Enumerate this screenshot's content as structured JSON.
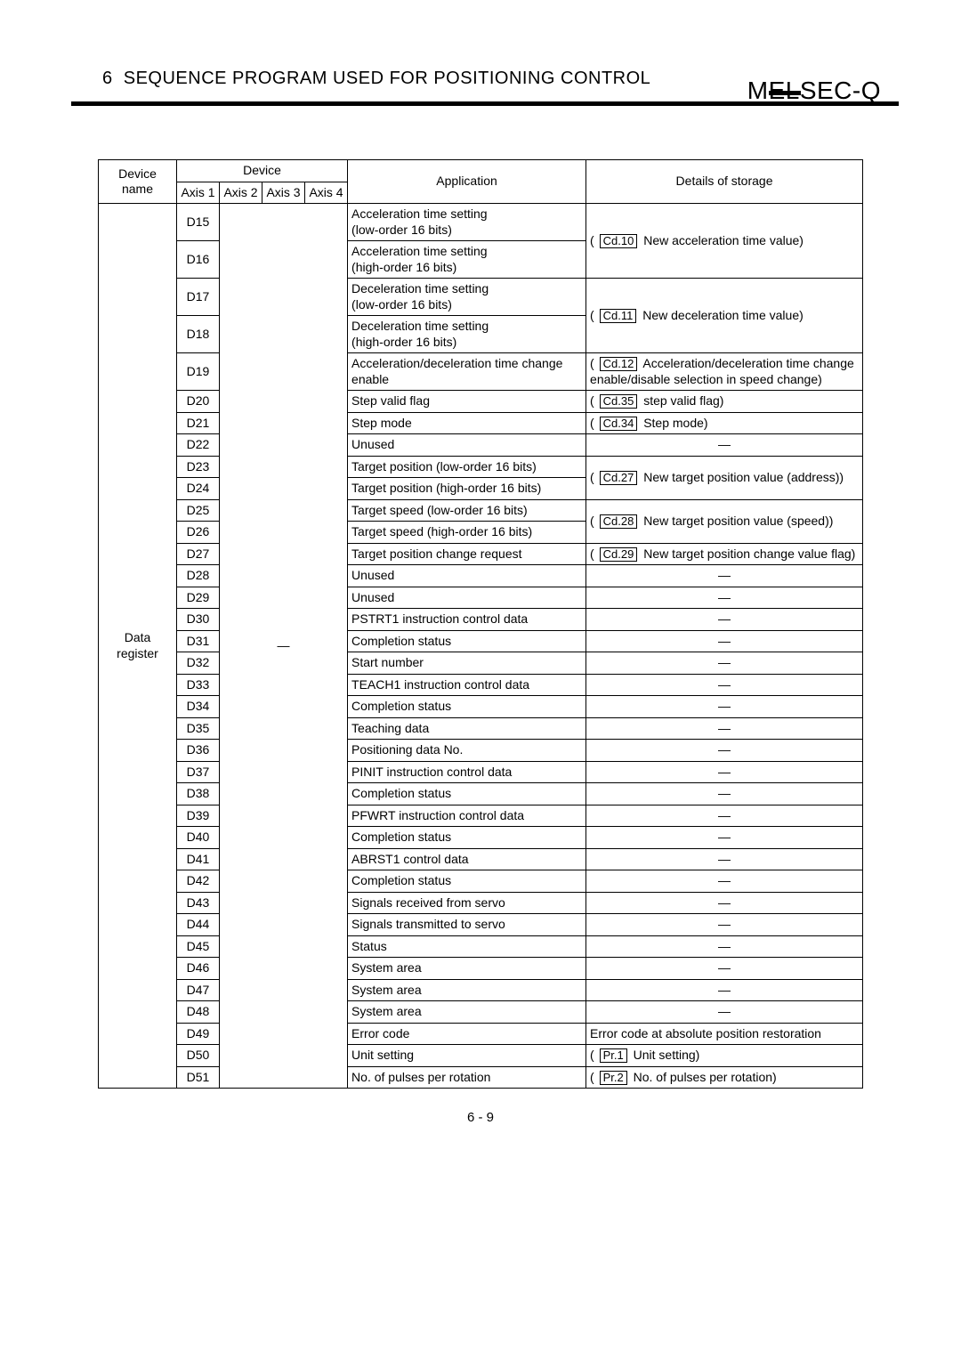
{
  "header": {
    "section_no": "6",
    "section_title": "SEQUENCE PROGRAM USED FOR POSITIONING CONTROL",
    "brand": "MELSEC-Q"
  },
  "page_number": "6 - 9",
  "table": {
    "head": {
      "device_name": "Device name",
      "device": "Device",
      "axis1": "Axis 1",
      "axis2": "Axis 2",
      "axis3": "Axis 3",
      "axis4": "Axis 4",
      "application": "Application",
      "details": "Details of storage"
    },
    "row_header_label": "Data register",
    "axis_merge_label": "—",
    "rows": [
      {
        "axis1": "D15",
        "app": "Acceleration time setting\n(low-order 16 bits)",
        "det_group": "d1"
      },
      {
        "axis1": "D16",
        "app": "Acceleration time setting\n(high-order 16 bits)",
        "det_group": "d1"
      },
      {
        "axis1": "D17",
        "app": "Deceleration time setting\n(low-order 16 bits)",
        "det_group": "d2"
      },
      {
        "axis1": "D18",
        "app": "Deceleration time setting\n(high-order 16 bits)",
        "det_group": "d2"
      },
      {
        "axis1": "D19",
        "app": "Acceleration/deceleration time change enable",
        "det_group": "d3"
      },
      {
        "axis1": "D20",
        "app": "Step valid flag",
        "det_group": "d4"
      },
      {
        "axis1": "D21",
        "app": "Step mode",
        "det_group": "d5"
      },
      {
        "axis1": "D22",
        "app": "Unused",
        "det_group": "dash"
      },
      {
        "axis1": "D23",
        "app": "Target position (low-order 16 bits)",
        "det_group": "d6"
      },
      {
        "axis1": "D24",
        "app": "Target position (high-order 16 bits)",
        "det_group": "d6"
      },
      {
        "axis1": "D25",
        "app": "Target speed (low-order 16 bits)",
        "det_group": "d7"
      },
      {
        "axis1": "D26",
        "app": "Target speed (high-order 16 bits)",
        "det_group": "d7"
      },
      {
        "axis1": "D27",
        "app": "Target position change request",
        "det_group": "d8"
      },
      {
        "axis1": "D28",
        "app": "Unused",
        "det_group": "dash"
      },
      {
        "axis1": "D29",
        "app": "Unused",
        "det_group": "dash"
      },
      {
        "axis1": "D30",
        "app": "PSTRT1 instruction control data",
        "det_group": "dash"
      },
      {
        "axis1": "D31",
        "app": "Completion status",
        "det_group": "dash"
      },
      {
        "axis1": "D32",
        "app": "Start number",
        "det_group": "dash"
      },
      {
        "axis1": "D33",
        "app": "TEACH1 instruction control data",
        "det_group": "dash"
      },
      {
        "axis1": "D34",
        "app": "Completion status",
        "det_group": "dash"
      },
      {
        "axis1": "D35",
        "app": "Teaching data",
        "det_group": "dash"
      },
      {
        "axis1": "D36",
        "app": "Positioning data No.",
        "det_group": "dash"
      },
      {
        "axis1": "D37",
        "app": "PINIT instruction control data",
        "det_group": "dash"
      },
      {
        "axis1": "D38",
        "app": "Completion status",
        "det_group": "dash"
      },
      {
        "axis1": "D39",
        "app": "PFWRT instruction control data",
        "det_group": "dash"
      },
      {
        "axis1": "D40",
        "app": "Completion status",
        "det_group": "dash"
      },
      {
        "axis1": "D41",
        "app": "ABRST1 control data",
        "det_group": "dash"
      },
      {
        "axis1": "D42",
        "app": "Completion status",
        "det_group": "dash"
      },
      {
        "axis1": "D43",
        "app": "Signals received from servo",
        "det_group": "dash"
      },
      {
        "axis1": "D44",
        "app": "Signals transmitted to servo",
        "det_group": "dash"
      },
      {
        "axis1": "D45",
        "app": "Status",
        "det_group": "dash"
      },
      {
        "axis1": "D46",
        "app": "System area",
        "det_group": "dash"
      },
      {
        "axis1": "D47",
        "app": "System area",
        "det_group": "dash"
      },
      {
        "axis1": "D48",
        "app": "System area",
        "det_group": "dash"
      },
      {
        "axis1": "D49",
        "app": "Error code",
        "det_group": "d9"
      },
      {
        "axis1": "D50",
        "app": "Unit setting",
        "det_group": "d10"
      },
      {
        "axis1": "D51",
        "app": "No. of pulses per rotation",
        "det_group": "d11"
      }
    ],
    "detail_groups": {
      "d1": {
        "rowspan": 2,
        "badge": "Cd.10",
        "before": "(",
        "after": " New acceleration time value)"
      },
      "d2": {
        "rowspan": 2,
        "badge": "Cd.11",
        "before": "(",
        "after": " New deceleration time value)"
      },
      "d3": {
        "rowspan": 1,
        "badge": "Cd.12",
        "before": "(",
        "after": " Acceleration/deceleration time change enable/disable selection in speed change)"
      },
      "d4": {
        "rowspan": 1,
        "badge": "Cd.35",
        "before": "(",
        "after": " step valid flag)"
      },
      "d5": {
        "rowspan": 1,
        "badge": "Cd.34",
        "before": "(",
        "after": " Step mode)"
      },
      "d6": {
        "rowspan": 2,
        "badge": "Cd.27",
        "before": "(",
        "after": " New target position value (address))"
      },
      "d7": {
        "rowspan": 2,
        "badge": "Cd.28",
        "before": "(",
        "after": " New target position value (speed))"
      },
      "d8": {
        "rowspan": 1,
        "badge": "Cd.29",
        "before": "(",
        "after": " New target position change value flag)"
      },
      "d9": {
        "rowspan": 1,
        "plain": "Error code at absolute position restoration"
      },
      "d10": {
        "rowspan": 1,
        "badge": "Pr.1",
        "before": "(",
        "after": " Unit setting)"
      },
      "d11": {
        "rowspan": 1,
        "badge": "Pr.2",
        "before": "(",
        "after": " No. of pulses per rotation)"
      },
      "dash": {
        "rowspan": 1,
        "dash": "—"
      }
    }
  }
}
